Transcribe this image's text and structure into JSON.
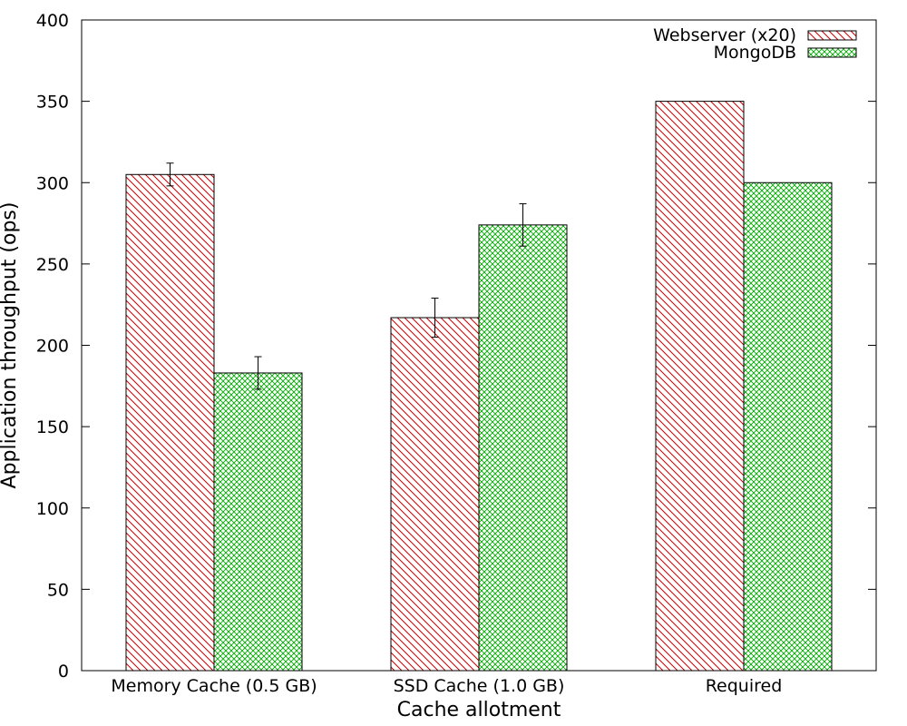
{
  "chart_data": {
    "type": "bar",
    "title": "",
    "xlabel": "Cache allotment",
    "ylabel": "Application throughput (ops)",
    "ylim": [
      0,
      400
    ],
    "yticks": [
      0,
      50,
      100,
      150,
      200,
      250,
      300,
      350,
      400
    ],
    "grid": false,
    "legend_position": "top-right",
    "categories": [
      "Memory Cache (0.5 GB)",
      "SSD Cache (1.0 GB)",
      "Required"
    ],
    "series": [
      {
        "name": "Webserver (x20)",
        "values": [
          305,
          217,
          350
        ],
        "errors": [
          7,
          12,
          null
        ],
        "color": "#cc0000",
        "pattern": "diagonal-hatch"
      },
      {
        "name": "MongoDB",
        "values": [
          183,
          274,
          300
        ],
        "errors": [
          10,
          13,
          null
        ],
        "color": "#00aa00",
        "pattern": "crosshatch"
      }
    ]
  }
}
